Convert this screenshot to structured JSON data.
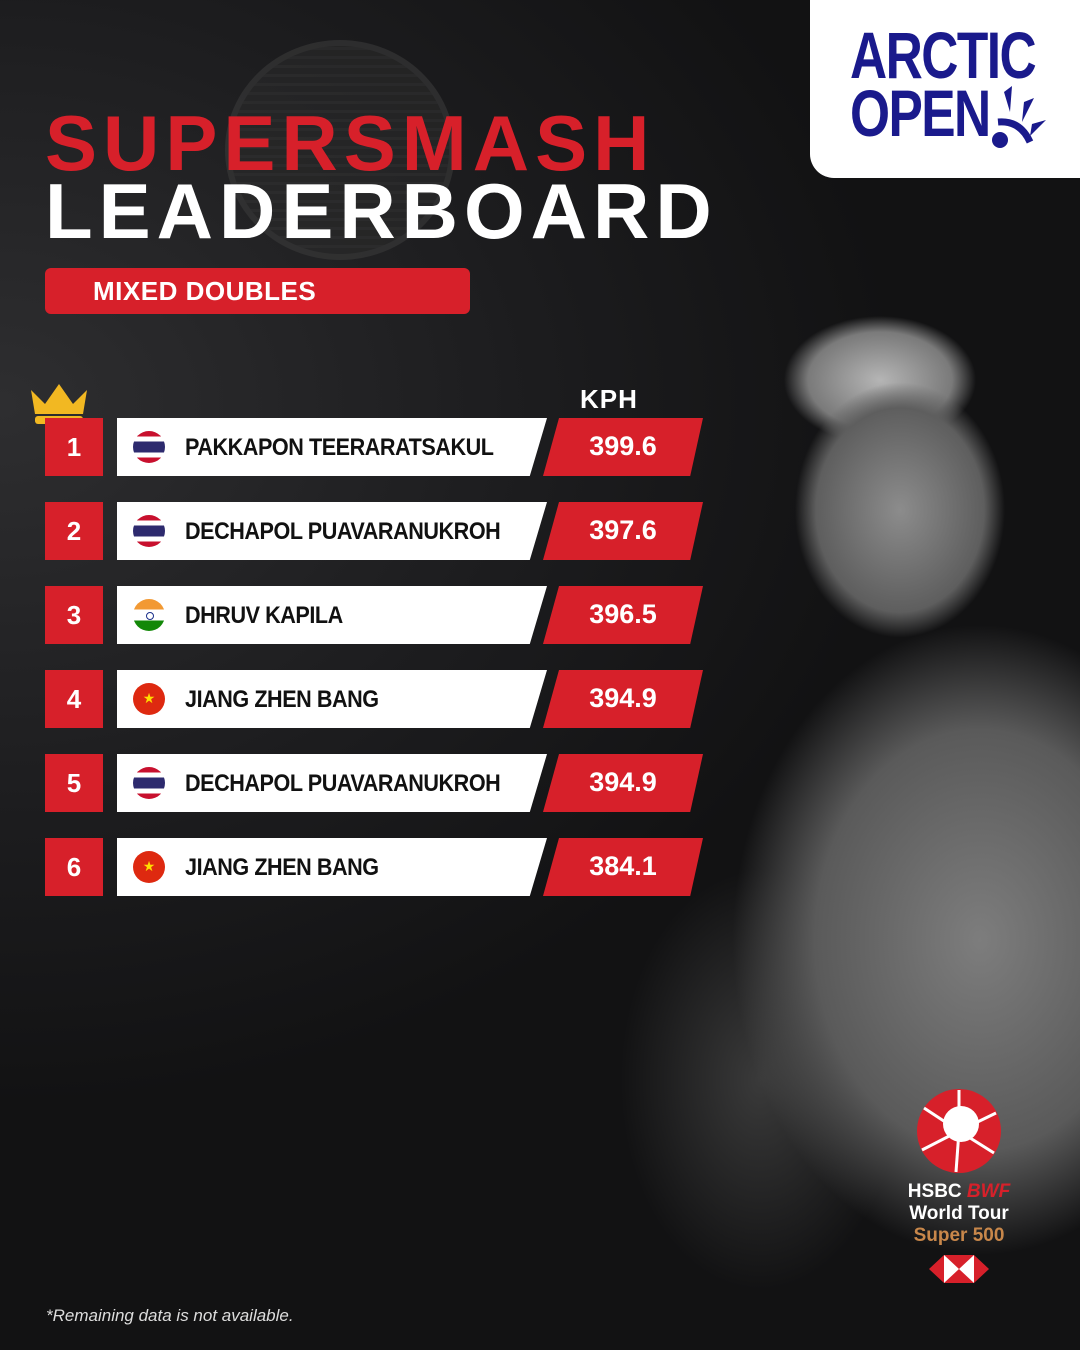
{
  "brand": {
    "logo_line1": "ARCTIC",
    "logo_line2": "OPEN"
  },
  "title": {
    "line1": "SUPERSMASH",
    "line2": "LEADERBOARD"
  },
  "category": "MIXED DOUBLES",
  "unit_header": "KPH",
  "colors": {
    "accent": "#d7202a",
    "logo": "#1a1a8c",
    "background": "#1c1c1e"
  },
  "leaderboard": [
    {
      "rank": "1",
      "flag": "thailand",
      "name": "PAKKAPON TEERARATSAKUL",
      "kph": "399.6"
    },
    {
      "rank": "2",
      "flag": "thailand",
      "name": "DECHAPOL PUAVARANUKROH",
      "kph": "397.6"
    },
    {
      "rank": "3",
      "flag": "india",
      "name": "DHRUV KAPILA",
      "kph": "396.5"
    },
    {
      "rank": "4",
      "flag": "china",
      "name": "JIANG ZHEN BANG",
      "kph": "394.9"
    },
    {
      "rank": "5",
      "flag": "thailand",
      "name": "DECHAPOL PUAVARANUKROH",
      "kph": "394.9"
    },
    {
      "rank": "6",
      "flag": "china",
      "name": "JIANG ZHEN BANG",
      "kph": "384.1"
    }
  ],
  "sponsor": {
    "line1a": "HSBC",
    "line1b": "BWF",
    "line2": "World Tour",
    "line3": "Super 500"
  },
  "footnote": "*Remaining data is not available."
}
